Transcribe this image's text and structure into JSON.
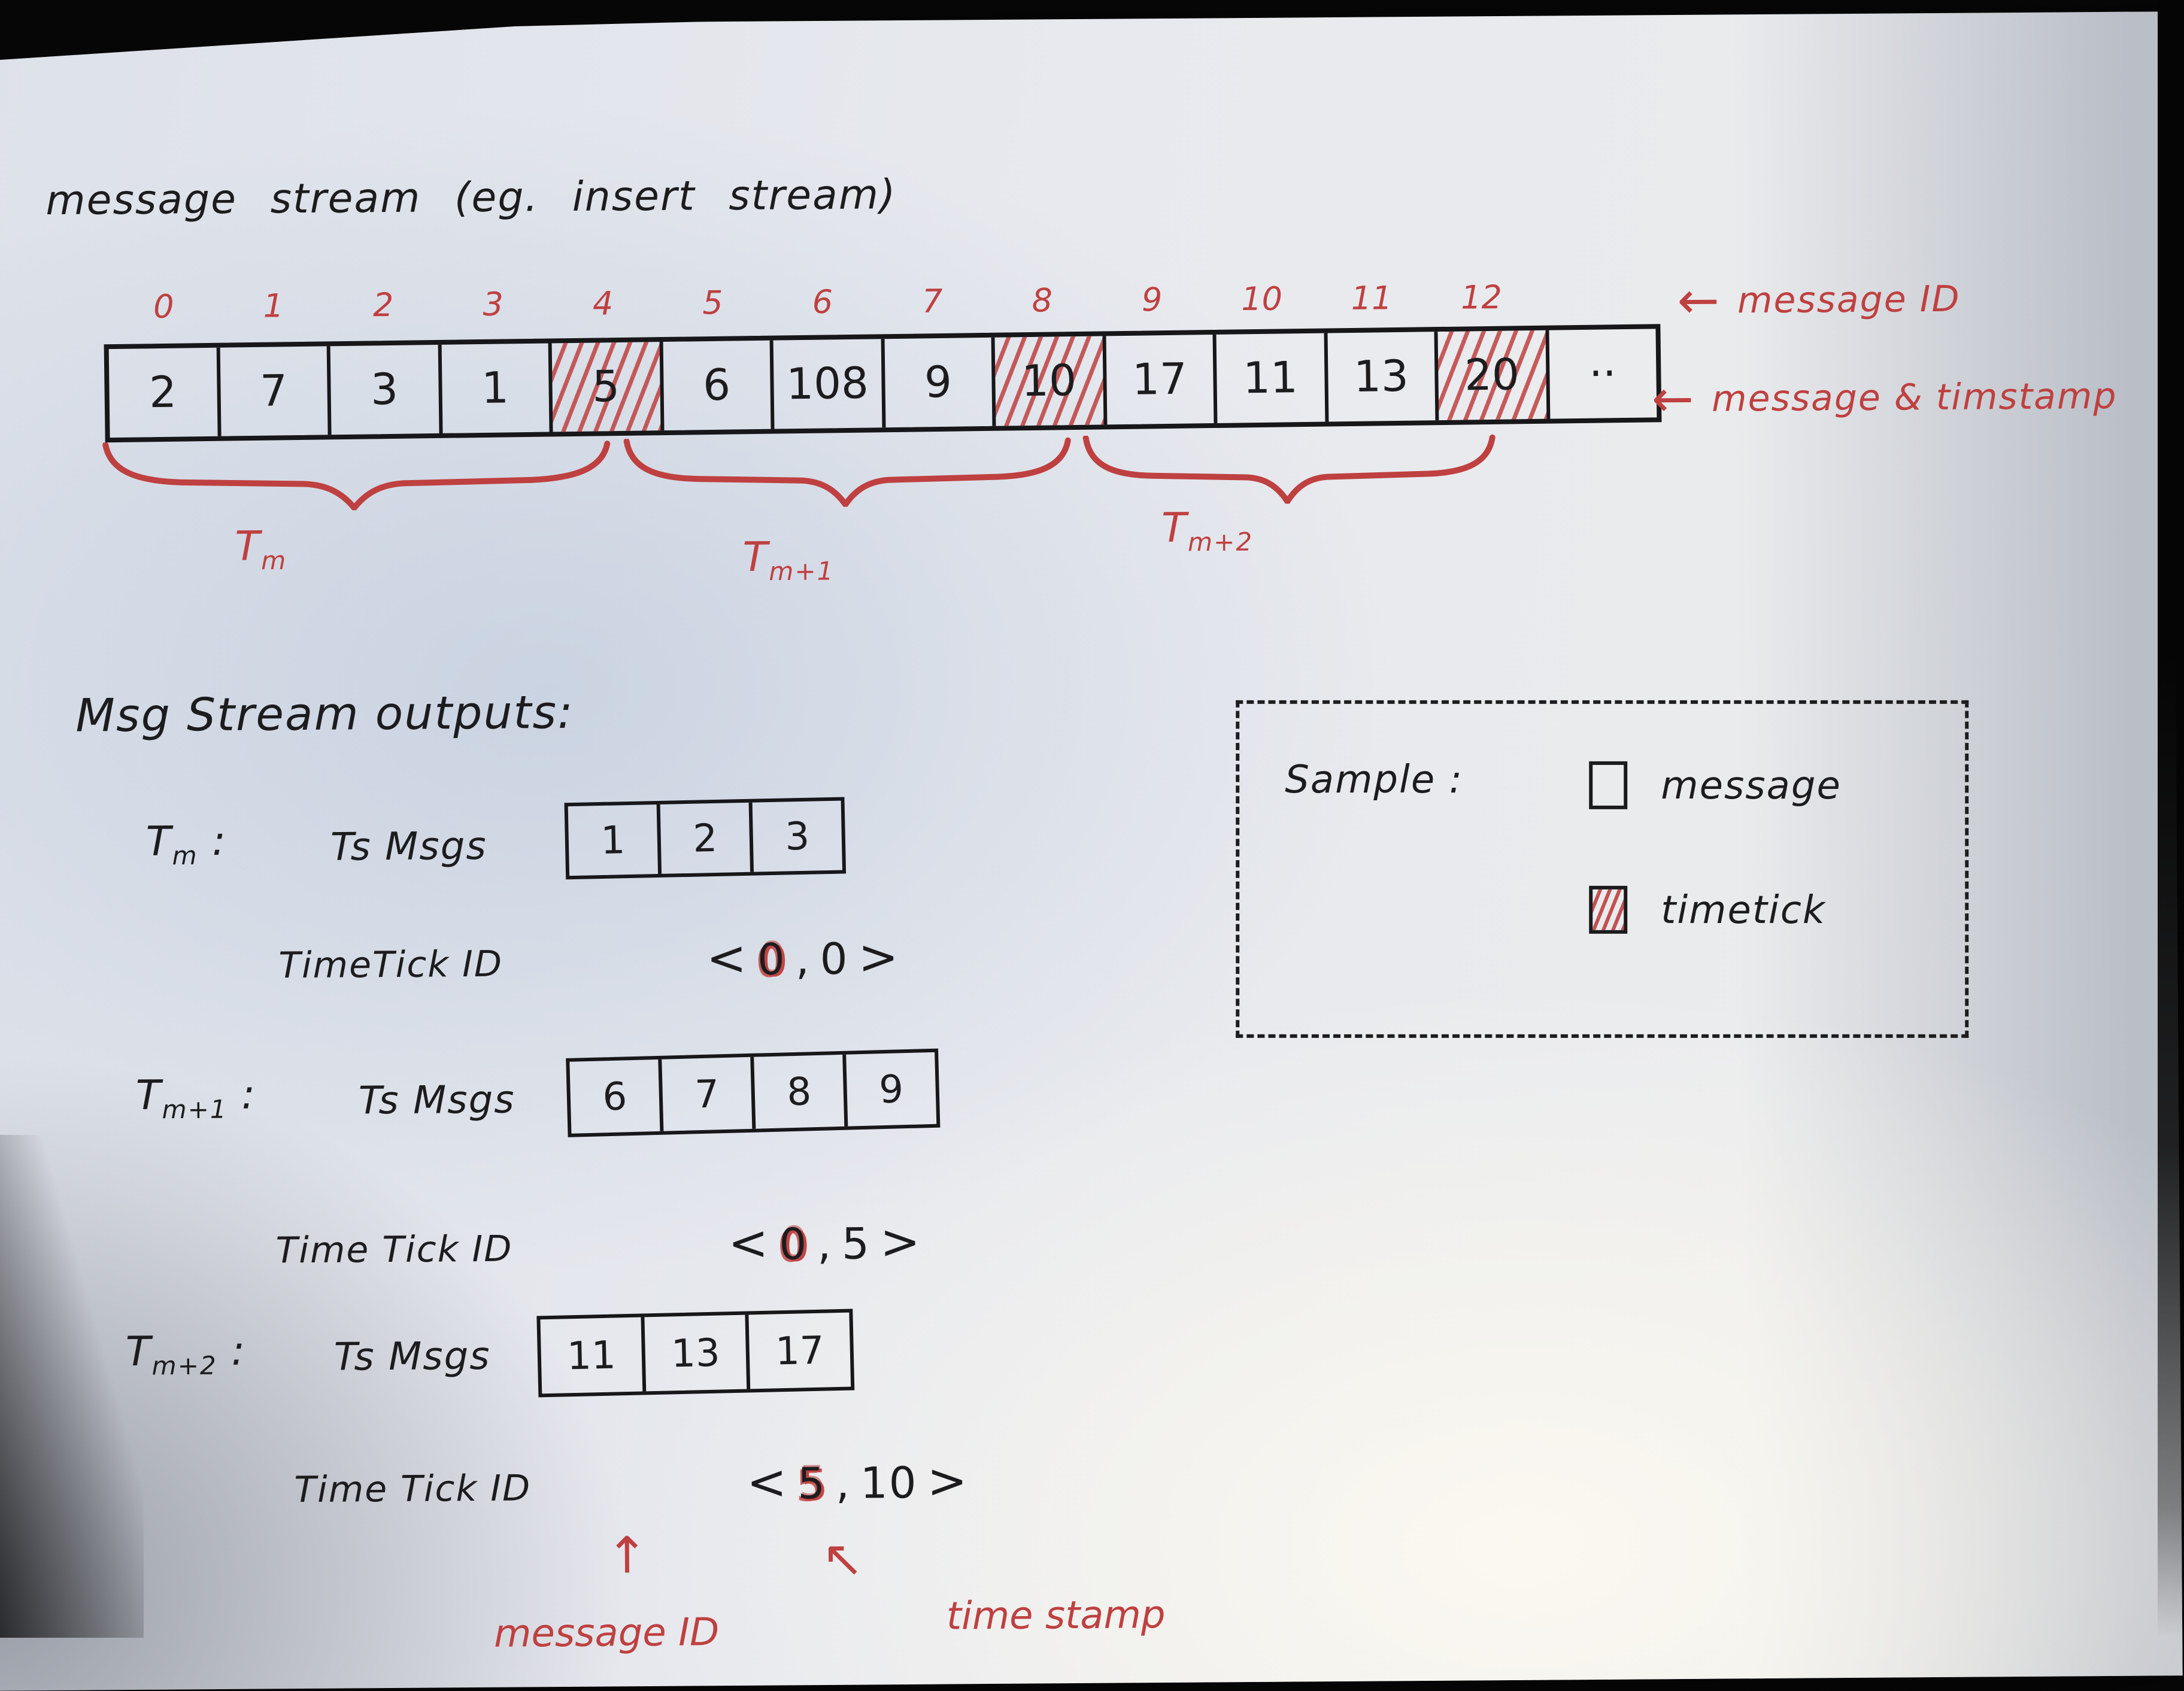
{
  "title": "message stream (eg. insert stream)",
  "icons": {
    "left_arrow": "←",
    "up_arrow": "↑",
    "up_left_arrow": "↖"
  },
  "stream": {
    "cells": [
      {
        "index": "0",
        "value": "2",
        "hatched": false
      },
      {
        "index": "1",
        "value": "7",
        "hatched": false
      },
      {
        "index": "2",
        "value": "3",
        "hatched": false
      },
      {
        "index": "3",
        "value": "1",
        "hatched": false
      },
      {
        "index": "4",
        "value": "5",
        "hatched": true
      },
      {
        "index": "5",
        "value": "6",
        "hatched": false
      },
      {
        "index": "6",
        "value": "108",
        "hatched": false
      },
      {
        "index": "7",
        "value": "9",
        "hatched": false
      },
      {
        "index": "8",
        "value": "10",
        "hatched": true
      },
      {
        "index": "9",
        "value": "17",
        "hatched": false
      },
      {
        "index": "10",
        "value": "11",
        "hatched": false
      },
      {
        "index": "11",
        "value": "13",
        "hatched": false
      },
      {
        "index": "12",
        "value": "20",
        "hatched": true
      },
      {
        "index": "",
        "value": "··",
        "hatched": false
      }
    ],
    "annotation_message_id": "message ID",
    "annotation_message_timestamp": "message & timstamp",
    "groups": [
      {
        "base": "T",
        "sub": "m"
      },
      {
        "base": "T",
        "sub": "m+1"
      },
      {
        "base": "T",
        "sub": "m+2"
      }
    ]
  },
  "outputs": {
    "heading": "Msg Stream outputs:",
    "rows": [
      {
        "label": {
          "base": "T",
          "sub": "m"
        },
        "colon": ":",
        "msgs_label": "Ts Msgs",
        "values": [
          "1",
          "2",
          "3"
        ],
        "tick_label": "TimeTick ID",
        "tick": {
          "open": "<",
          "first": "0",
          "sep": ",",
          "second": "0",
          "close": ">"
        }
      },
      {
        "label": {
          "base": "T",
          "sub": "m+1"
        },
        "colon": ":",
        "msgs_label": "Ts Msgs",
        "values": [
          "6",
          "7",
          "8",
          "9"
        ],
        "tick_label": "Time Tick ID",
        "tick": {
          "open": "<",
          "first": "0",
          "sep": ",",
          "second": "5",
          "close": ">"
        }
      },
      {
        "label": {
          "base": "T",
          "sub": "m+2"
        },
        "colon": ":",
        "msgs_label": "Ts Msgs",
        "values": [
          "11",
          "13",
          "17"
        ],
        "tick_label": "Time Tick ID",
        "tick": {
          "open": "<",
          "first": "5",
          "sep": ",",
          "second": "10",
          "close": ">"
        }
      }
    ],
    "pointer_message_id_label": "message ID",
    "pointer_timestamp_label": "time stamp"
  },
  "legend": {
    "title": "Sample :",
    "message_label": "message",
    "timetick_label": "timetick"
  },
  "colors": {
    "red_ink": "#bf4040",
    "black_ink": "#1c1c1e",
    "paper": "#e7e9ee"
  }
}
